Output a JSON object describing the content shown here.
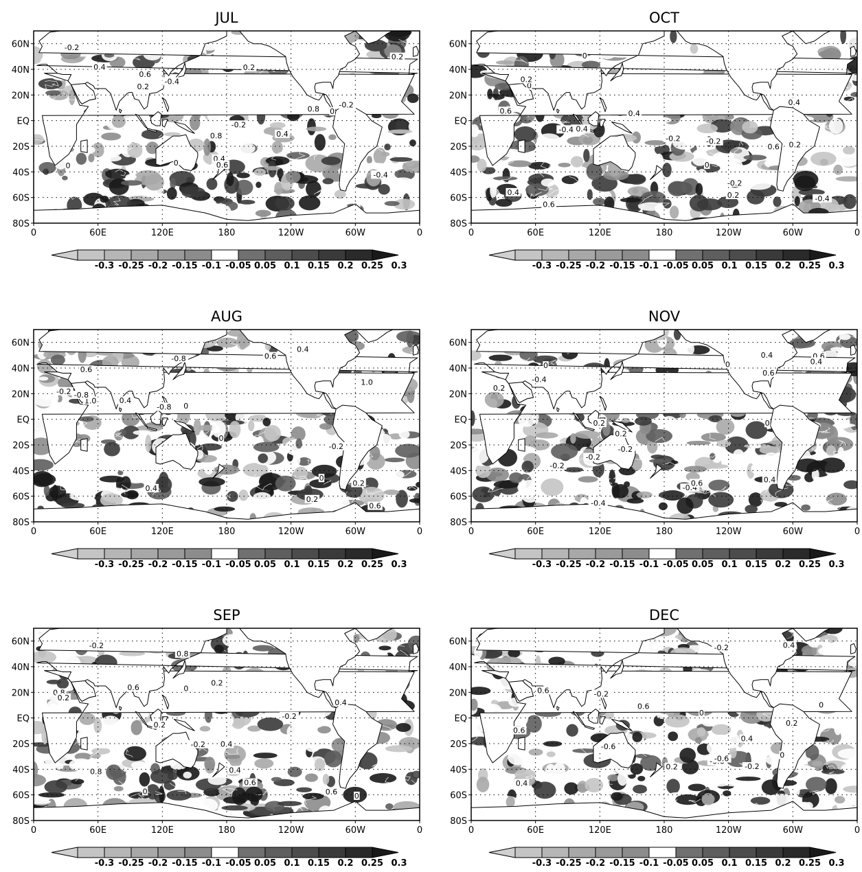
{
  "figure": {
    "panels": [
      {
        "title": "JUL",
        "key": "jul"
      },
      {
        "title": "OCT",
        "key": "oct"
      },
      {
        "title": "AUG",
        "key": "aug"
      },
      {
        "title": "NOV",
        "key": "nov"
      },
      {
        "title": "SEP",
        "key": "sep"
      },
      {
        "title": "DEC",
        "key": "dec"
      }
    ],
    "lat_ticks": [
      "60N",
      "40N",
      "20N",
      "EQ",
      "20S",
      "40S",
      "60S",
      "80S"
    ],
    "lon_ticks": [
      "0",
      "60E",
      "120E",
      "180",
      "120W",
      "60W",
      "0"
    ],
    "colorbar": {
      "labels": [
        "-0.3",
        "-0.25",
        "-0.2",
        "-0.15",
        "-0.1",
        "-0.05",
        "0.05",
        "0.1",
        "0.15",
        "0.2",
        "0.25",
        "0.3"
      ],
      "colors": [
        "#d0d0d0",
        "#c4c4c4",
        "#b6b6b6",
        "#a8a8a8",
        "#9a9a9a",
        "#8c8c8c",
        "#ffffff",
        "#707070",
        "#5e5e5e",
        "#4c4c4c",
        "#3a3a3a",
        "#2a2a2a",
        "#1a1a1a"
      ]
    },
    "contour_labels": {
      "jul": [
        "0.2",
        "0.4",
        "0",
        "-0.2",
        "0.6",
        "0.8",
        "-0.4"
      ],
      "oct": [
        "0",
        "-0.2",
        "0.2",
        "0.4",
        "-0.4",
        "0.6"
      ],
      "aug": [
        "0.4",
        "0.6",
        "-0.8",
        "0",
        "-0.2",
        "0.2",
        "1.0"
      ],
      "nov": [
        "-0.2",
        "0",
        "0.2",
        "-0.4",
        "0.4",
        "0.6"
      ],
      "sep": [
        "0.2",
        "0",
        "-0.2",
        "0.4",
        "0.6",
        "0.8"
      ],
      "dec": [
        "-0.2",
        "0",
        "0.2",
        "0.4",
        "-0.6",
        "0.6"
      ]
    }
  }
}
